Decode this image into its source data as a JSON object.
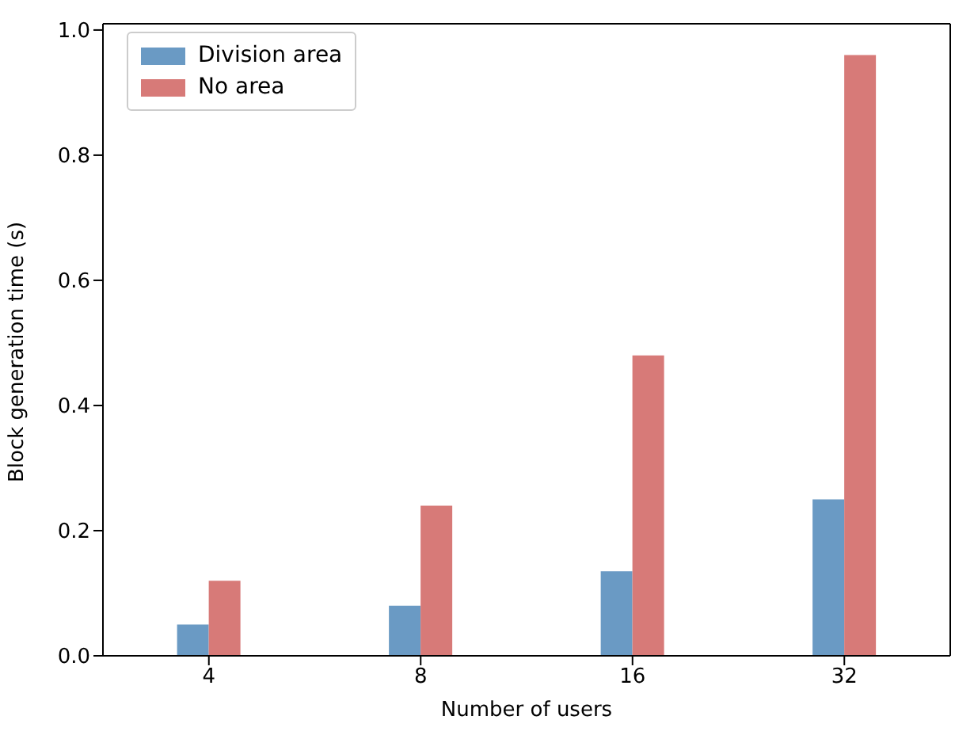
{
  "chart_data": {
    "type": "bar",
    "xlabel": "Number of users",
    "ylabel": "Block generation time (s)",
    "categories": [
      "4",
      "8",
      "16",
      "32"
    ],
    "series": [
      {
        "name": "Division area",
        "color": "#6a9ac4",
        "values": [
          0.05,
          0.08,
          0.135,
          0.25
        ]
      },
      {
        "name": "No area",
        "color": "#d77a78",
        "values": [
          0.12,
          0.24,
          0.48,
          0.96
        ]
      }
    ],
    "ylim": [
      0,
      1.01
    ],
    "yticks": [
      {
        "value": 0,
        "label": "0.0"
      },
      0.2,
      0.4,
      0.6,
      0.8,
      {
        "value": 1,
        "label": "1.0"
      }
    ],
    "grid": false,
    "legend": "top left"
  }
}
